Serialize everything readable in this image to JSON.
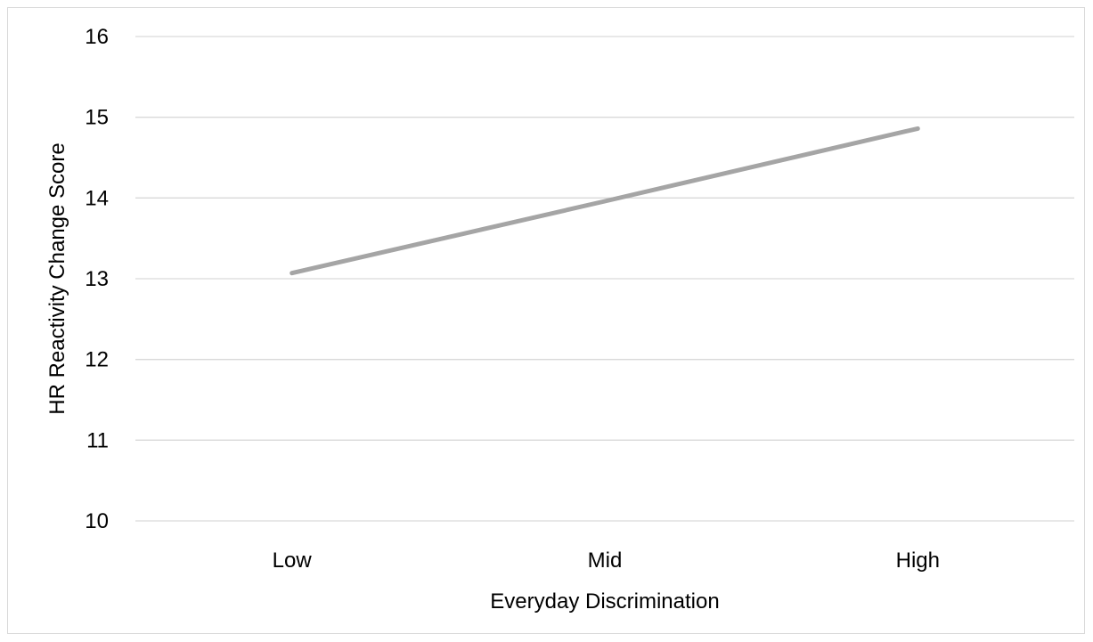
{
  "chart_data": {
    "type": "line",
    "title": "",
    "xlabel": "Everyday Discrimination",
    "ylabel": "HR Reactivity Change Score",
    "categories": [
      "Low",
      "Mid",
      "High"
    ],
    "series": [
      {
        "values": [
          13.07,
          13.96,
          14.86
        ],
        "color": "#a5a5a5"
      }
    ],
    "ylim": [
      10,
      16
    ],
    "yticks": [
      "10",
      "11",
      "12",
      "13",
      "14",
      "15",
      "16"
    ],
    "grid": true,
    "legend": "none",
    "colors": {
      "gridline": "#d9d9d9",
      "border": "#d9d9d9",
      "text": "#000000"
    }
  }
}
